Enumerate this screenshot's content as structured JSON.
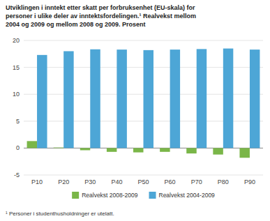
{
  "chart_data": {
    "type": "bar",
    "title": "Utviklingen i inntekt etter skatt per forbruksenhet (EU-skala) for\npersoner i ulike deler av inntektsfordelingen.¹  Realvekst mellom\n2004 og 2009 og mellom 2008 og 2009. Prosent",
    "footnote": "¹ Personer i studenthusholdninger er utelatt.",
    "categories": [
      "P10",
      "P20",
      "P30",
      "P40",
      "P50",
      "P60",
      "P70",
      "P80",
      "P90"
    ],
    "series": [
      {
        "name": "Realvekst 2008-2009",
        "color": "#7ab648",
        "values": [
          1.3,
          0.1,
          -0.4,
          -0.7,
          -0.8,
          -0.7,
          -1.0,
          -1.2,
          -1.8
        ]
      },
      {
        "name": "Realvekst 2004-2009",
        "color": "#4da6d6",
        "values": [
          17.3,
          18.0,
          18.35,
          18.3,
          18.2,
          18.3,
          18.4,
          18.5,
          18.3
        ]
      }
    ],
    "ylim": [
      -5,
      20
    ],
    "yticks": [
      -5,
      0,
      5,
      10,
      15,
      20
    ],
    "grid": true,
    "legend": "bottom"
  }
}
